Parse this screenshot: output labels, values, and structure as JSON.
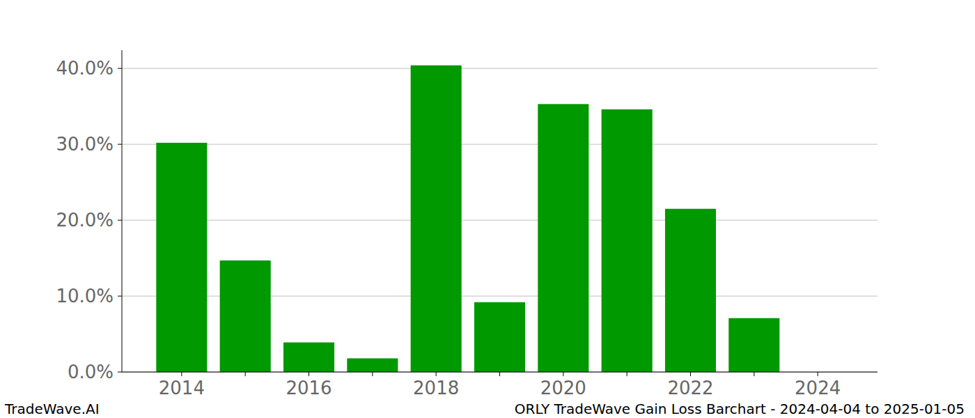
{
  "chart_data": {
    "type": "bar",
    "title": "ORLY TradeWave Gain Loss Barchart - 2024-04-04 to 2025-01-05",
    "annotations": [
      "TradeWave.AI"
    ],
    "categories": [
      "2014",
      null,
      "2016",
      null,
      "2018",
      null,
      "2020",
      null,
      "2022",
      null,
      "2024"
    ],
    "values": [
      30.2,
      14.7,
      3.9,
      1.8,
      40.4,
      9.2,
      35.3,
      34.6,
      21.5,
      7.1,
      0
    ],
    "color": "#009900",
    "ylim": [
      0,
      42.4
    ],
    "yticks": [
      {
        "value": 0,
        "label": "0.0%"
      },
      {
        "value": 10,
        "label": "10.0%"
      },
      {
        "value": 20,
        "label": "20.0%"
      },
      {
        "value": 30,
        "label": "30.0%"
      },
      {
        "value": 40,
        "label": "40.0%"
      }
    ],
    "grid": true
  }
}
